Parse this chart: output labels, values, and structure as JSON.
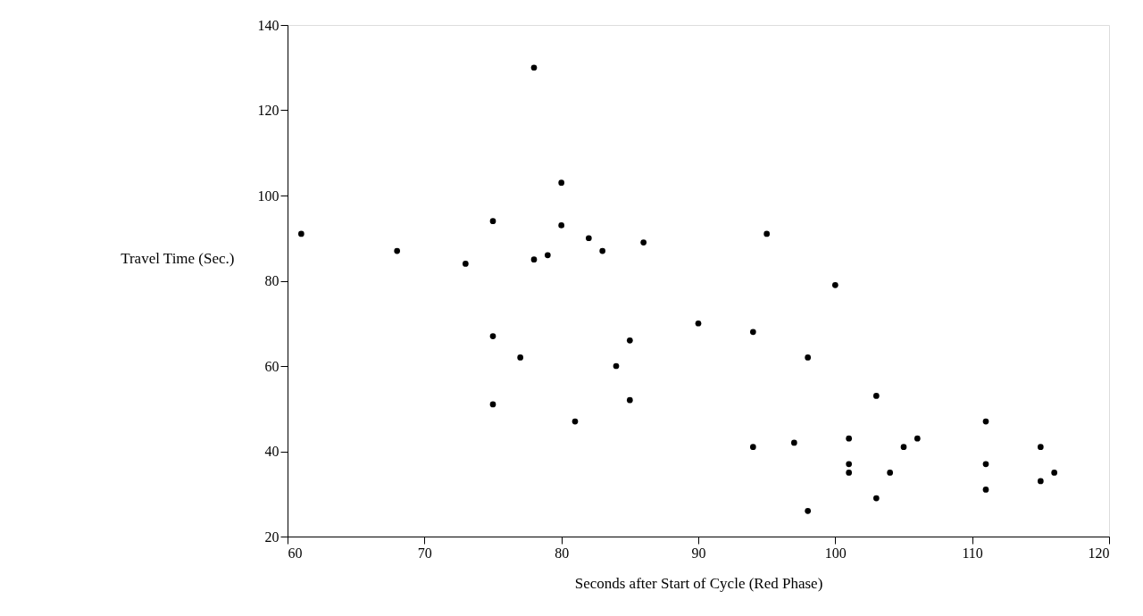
{
  "chart_data": {
    "type": "scatter",
    "xlabel": "Seconds after Start of Cycle (Red Phase)",
    "ylabel": "Travel Time (Sec.)",
    "x": [
      61,
      68,
      73,
      75,
      75,
      75,
      77,
      78,
      78,
      79,
      80,
      80,
      81,
      82,
      83,
      84,
      85,
      85,
      86,
      90,
      94,
      94,
      95,
      97,
      98,
      98,
      100,
      101,
      101,
      101,
      103,
      103,
      104,
      105,
      106,
      111,
      111,
      111,
      115,
      115,
      116
    ],
    "values": [
      91,
      87,
      84,
      94,
      67,
      51,
      62,
      130,
      85,
      86,
      103,
      93,
      47,
      90,
      87,
      60,
      66,
      52,
      89,
      70,
      68,
      41,
      91,
      42,
      62,
      26,
      79,
      43,
      37,
      35,
      53,
      29,
      35,
      41,
      43,
      47,
      37,
      31,
      41,
      33,
      35
    ],
    "color": "#000000",
    "marker": "circle",
    "grid": false,
    "xlim": [
      60,
      120
    ],
    "xticks": [
      60,
      70,
      80,
      90,
      100,
      110,
      120
    ],
    "ylim": [
      20,
      140
    ],
    "yticks": [
      20,
      40,
      60,
      80,
      100,
      120,
      140
    ]
  }
}
